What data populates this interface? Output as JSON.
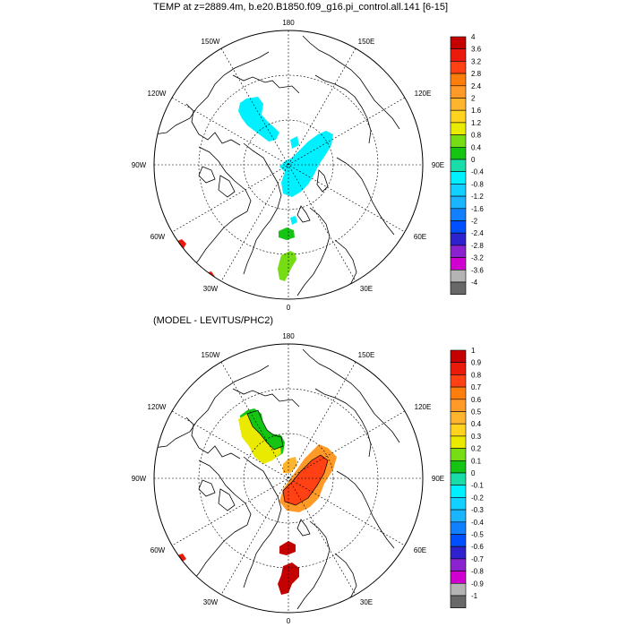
{
  "panel_top": {
    "title": "TEMP at z=2889.4m, b.e20.B1850.f09_g16.pi_control.all.141 [6-15]",
    "labelbar": {
      "colors": [
        "#686868",
        "#b4b4b4",
        "#cf00cf",
        "#8b22cf",
        "#2e22cf",
        "#0050ff",
        "#1180ff",
        "#1ab4ff",
        "#12d0ff",
        "#00f0ff",
        "#19dca8",
        "#16c414",
        "#76dc14",
        "#eaea00",
        "#ffd31f",
        "#ffb42d",
        "#ff9a28",
        "#ff7d0a",
        "#ff4114",
        "#ea1b0b",
        "#c40000"
      ],
      "labels": [
        "-4",
        "-3.6",
        "-3.2",
        "-2.8",
        "-2.4",
        "-2",
        "-1.6",
        "-1.2",
        "-0.8",
        "-0.4",
        "0",
        "0.4",
        "0.8",
        "1.2",
        "1.6",
        "2",
        "2.4",
        "2.8",
        "3.2",
        "3.6",
        "4"
      ]
    }
  },
  "panel_bottom": {
    "title": "(MODEL - LEVITUS/PHC2)",
    "labelbar": {
      "colors": [
        "#686868",
        "#b4b4b4",
        "#cf00cf",
        "#8b22cf",
        "#2e22cf",
        "#0050ff",
        "#1180ff",
        "#1ab4ff",
        "#12d0ff",
        "#00f0ff",
        "#19dca8",
        "#16c414",
        "#76dc14",
        "#eaea00",
        "#ffd31f",
        "#ffb42d",
        "#ff9a28",
        "#ff7d0a",
        "#ff4114",
        "#ea1b0b",
        "#c40000"
      ],
      "labels": [
        "-1",
        "-0.9",
        "-0.8",
        "-0.7",
        "-0.6",
        "-0.5",
        "-0.4",
        "-0.3",
        "-0.2",
        "-0.1",
        "0",
        "0.1",
        "0.2",
        "0.3",
        "0.4",
        "0.5",
        "0.6",
        "0.7",
        "0.8",
        "0.9",
        "1"
      ]
    }
  },
  "map": {
    "longitude_labels": [
      "180",
      "150E",
      "120E",
      "90E",
      "60E",
      "30E",
      "0",
      "30W",
      "60W",
      "90W",
      "120W",
      "150W"
    ]
  }
}
